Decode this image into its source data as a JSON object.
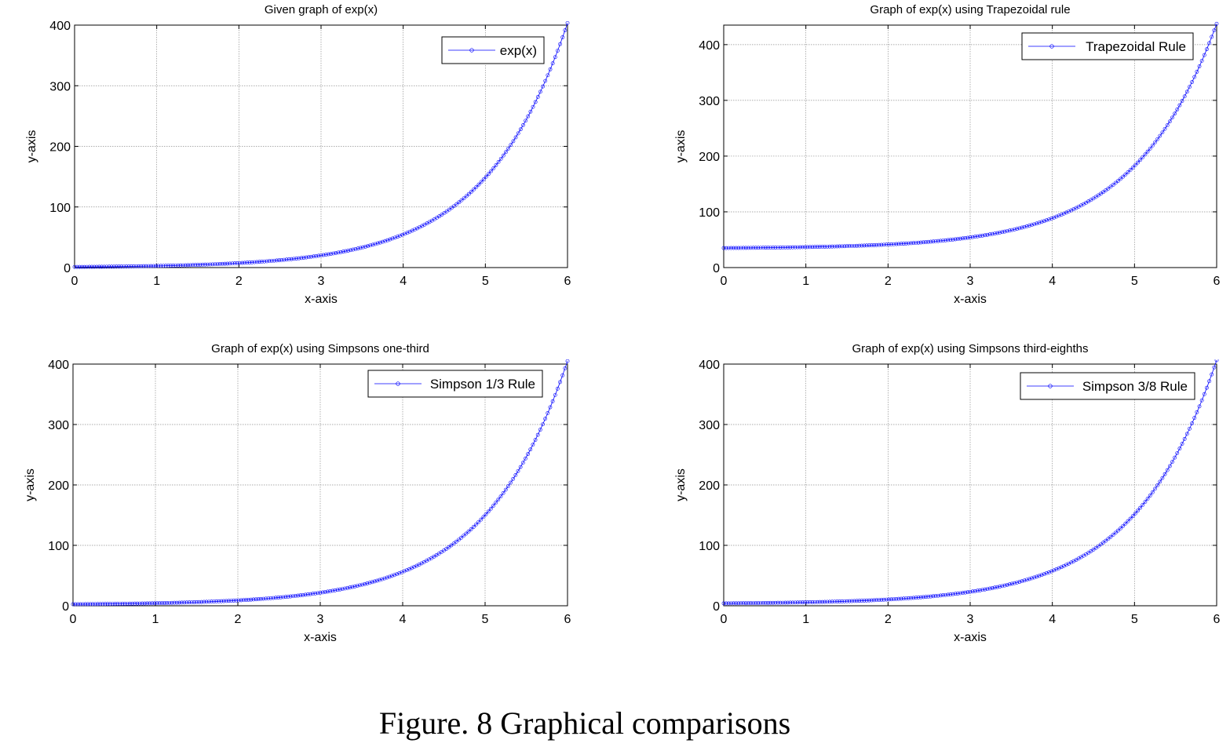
{
  "figure_caption": "Figure. 8 Graphical comparisons",
  "colors": {
    "series": "#0000ff",
    "grid": "#909090",
    "axes": "#000000",
    "background": "#ffffff"
  },
  "chart_data": [
    {
      "type": "line",
      "title": "Given graph of exp(x)",
      "xlabel": "x-axis",
      "ylabel": "y-axis",
      "xlim": [
        0,
        6
      ],
      "ylim": [
        0,
        400
      ],
      "xticks": [
        0,
        1,
        2,
        3,
        4,
        5,
        6
      ],
      "yticks": [
        0,
        100,
        200,
        300,
        400
      ],
      "grid": true,
      "legend_position": "top-right",
      "marker": "circle",
      "series": [
        {
          "name": "exp(x)",
          "color": "#0000ff",
          "function": "exp(x)",
          "offset": 0,
          "x_range": [
            0,
            6
          ],
          "step": 0.03,
          "x": [
            0,
            1,
            2,
            3,
            4,
            5,
            6
          ],
          "values": [
            1,
            2.7,
            7.4,
            20.1,
            54.6,
            148.4,
            403.4
          ]
        }
      ]
    },
    {
      "type": "line",
      "title": "Graph of exp(x) using Trapezoidal rule",
      "xlabel": "x-axis",
      "ylabel": "y-axis",
      "xlim": [
        0,
        6
      ],
      "ylim": [
        0,
        435
      ],
      "xticks": [
        0,
        1,
        2,
        3,
        4,
        5,
        6
      ],
      "yticks": [
        0,
        100,
        200,
        300,
        400
      ],
      "grid": true,
      "legend_position": "top-right",
      "marker": "circle",
      "series": [
        {
          "name": "Trapezoidal Rule",
          "color": "#0000ff",
          "function": "exp(x)",
          "offset": 34,
          "x_range": [
            0,
            6
          ],
          "step": 0.03,
          "x": [
            0,
            1,
            2,
            3,
            4,
            5,
            6
          ],
          "values": [
            35,
            36.7,
            41.4,
            54.1,
            88.6,
            182.4,
            437.4
          ]
        }
      ]
    },
    {
      "type": "line",
      "title": "Graph of exp(x) using Simpsons one-third",
      "xlabel": "x-axis",
      "ylabel": "y-axis",
      "xlim": [
        0,
        6
      ],
      "ylim": [
        0,
        400
      ],
      "xticks": [
        0,
        1,
        2,
        3,
        4,
        5,
        6
      ],
      "yticks": [
        0,
        100,
        200,
        300,
        400
      ],
      "grid": true,
      "legend_position": "top-right",
      "marker": "circle",
      "series": [
        {
          "name": "Simpson 1/3 Rule",
          "color": "#0000ff",
          "function": "exp(x)",
          "offset": 1.5,
          "x_range": [
            0,
            6
          ],
          "step": 0.03,
          "x": [
            0,
            1,
            2,
            3,
            4,
            5,
            6
          ],
          "values": [
            2.5,
            4.2,
            8.9,
            21.6,
            56.1,
            149.9,
            404.9
          ]
        }
      ]
    },
    {
      "type": "line",
      "title": "Graph of exp(x) using Simpsons third-eighths",
      "xlabel": "x-axis",
      "ylabel": "y-axis",
      "xlim": [
        0,
        6
      ],
      "ylim": [
        0,
        400
      ],
      "xticks": [
        0,
        1,
        2,
        3,
        4,
        5,
        6
      ],
      "yticks": [
        0,
        100,
        200,
        300,
        400
      ],
      "grid": true,
      "legend_position": "top-right",
      "marker": "circle",
      "series": [
        {
          "name": "Simpson 3/8 Rule",
          "color": "#0000ff",
          "function": "exp(x)",
          "offset": 3,
          "x_range": [
            0,
            6
          ],
          "step": 0.03,
          "x": [
            0,
            1,
            2,
            3,
            4,
            5,
            6
          ],
          "values": [
            4,
            5.7,
            10.4,
            23.1,
            57.6,
            151.4,
            406.4
          ]
        }
      ]
    }
  ]
}
